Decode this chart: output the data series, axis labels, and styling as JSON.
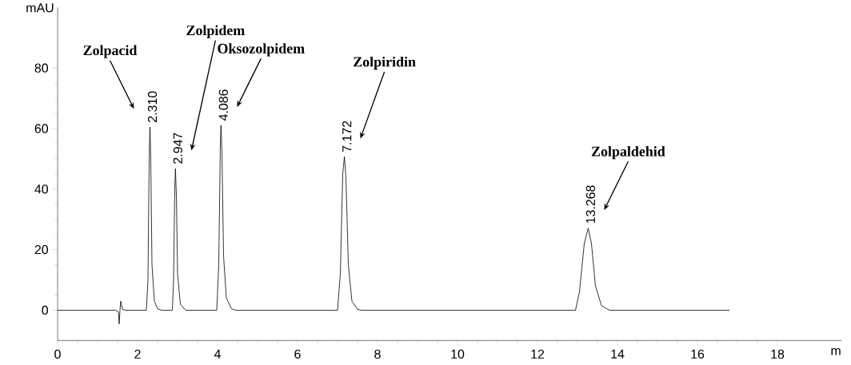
{
  "chart_data": {
    "type": "line",
    "xlabel": "m",
    "ylabel": "mAU",
    "color": "#000000",
    "x": [
      0,
      1.45,
      1.52,
      1.54,
      1.56,
      1.58,
      1.62,
      1.7,
      2.22,
      2.26,
      2.29,
      2.31,
      2.33,
      2.36,
      2.42,
      2.5,
      2.6,
      2.87,
      2.9,
      2.93,
      2.947,
      2.97,
      3.0,
      3.07,
      3.2,
      3.98,
      4.03,
      4.07,
      4.086,
      4.11,
      4.15,
      4.22,
      4.35,
      4.45,
      7.0,
      7.07,
      7.13,
      7.172,
      7.21,
      7.27,
      7.36,
      7.5,
      7.6,
      12.95,
      13.05,
      13.17,
      13.268,
      13.35,
      13.45,
      13.6,
      13.8,
      16.8
    ],
    "values": [
      0,
      0,
      -0.5,
      -4.5,
      0,
      3,
      0.3,
      0,
      0,
      10,
      50,
      60.5,
      50,
      15,
      3,
      0.5,
      0,
      0,
      10,
      40,
      46.8,
      38,
      12,
      2,
      0,
      0,
      15,
      55,
      61.1,
      52,
      18,
      4,
      0.5,
      0,
      0,
      12,
      45,
      50.7,
      44,
      15,
      3,
      0.3,
      0,
      0,
      6,
      22,
      27.1,
      22,
      8,
      1.5,
      0,
      0
    ],
    "xlim": [
      0,
      19.6
    ],
    "ylim": [
      -10,
      100
    ],
    "xticks": [
      0,
      2,
      4,
      6,
      8,
      10,
      12,
      14,
      16,
      18
    ],
    "yticks": [
      0,
      20,
      40,
      60,
      80
    ],
    "annotations": [
      {
        "text": "2.310",
        "x": 2.31,
        "y": 60.5
      },
      {
        "text": "2.947",
        "x": 2.947,
        "y": 46.8
      },
      {
        "text": "4.086",
        "x": 4.086,
        "y": 61.1
      },
      {
        "text": "7.172",
        "x": 7.172,
        "y": 50.7
      },
      {
        "text": "13.268",
        "x": 13.268,
        "y": 27.1
      },
      "Zolpacid",
      "Zolpidem",
      "Oksozolpidem",
      "Zolpiridin",
      "Zolpaldehid"
    ]
  }
}
